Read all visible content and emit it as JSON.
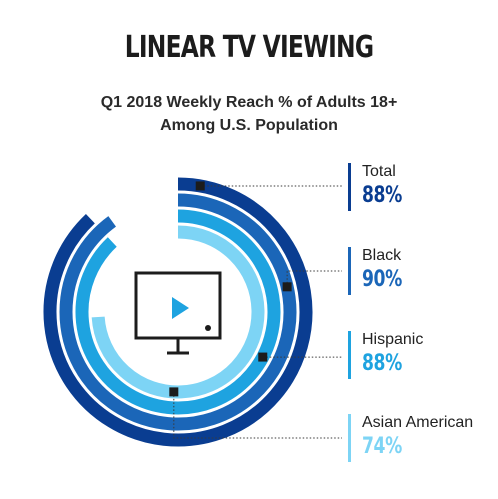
{
  "title": "LINEAR TV VIEWING",
  "subtitle_line1": "Q1 2018 Weekly Reach % of Adults 18+",
  "subtitle_line2": "Among U.S. Population",
  "colors": {
    "total": "#0a3d91",
    "black": "#1b66b8",
    "hispanic": "#1ea3e0",
    "asian_american": "#7dd4f5",
    "marker": "#1c1c1c"
  },
  "icon": "tv-play-icon",
  "chart_data": {
    "type": "radial-bar",
    "title": "LINEAR TV VIEWING",
    "subtitle": "Q1 2018 Weekly Reach % of Adults 18+ Among U.S. Population",
    "unit": "%",
    "max": 100,
    "series": [
      {
        "name": "Total",
        "value": 88,
        "label": "88%",
        "color": "#0a3d91"
      },
      {
        "name": "Black",
        "value": 90,
        "label": "90%",
        "color": "#1b66b8"
      },
      {
        "name": "Hispanic",
        "value": 88,
        "label": "88%",
        "color": "#1ea3e0"
      },
      {
        "name": "Asian American",
        "value": 74,
        "label": "74%",
        "color": "#7dd4f5"
      }
    ]
  }
}
